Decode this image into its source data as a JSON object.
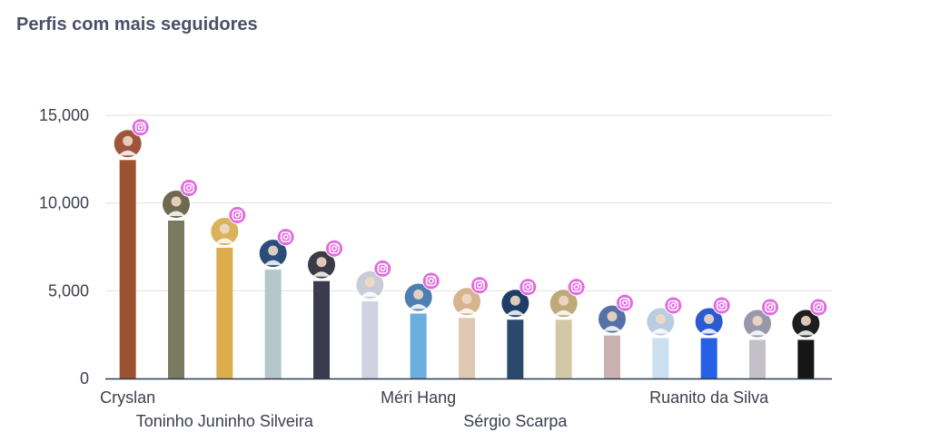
{
  "chart_data": {
    "type": "bar",
    "title": "Perfis com mais seguidores",
    "xlabel": "",
    "ylabel": "",
    "ylim": [
      0,
      15000
    ],
    "yticks": [
      0,
      5000,
      10000,
      15000
    ],
    "ytick_labels": [
      "0",
      "5,000",
      "10,000",
      "15,000"
    ],
    "grid": true,
    "categories": [
      "Cryslan",
      "",
      "Toninho Juninho Silveira",
      "",
      "",
      "",
      "Méri Hang",
      "",
      "Sérgio Scarpa",
      "",
      "",
      "",
      "Ruanito da Silva",
      "",
      ""
    ],
    "values": [
      12450,
      9000,
      7450,
      6200,
      5550,
      4400,
      3700,
      3450,
      3350,
      3350,
      2450,
      2300,
      2300,
      2200,
      2200
    ],
    "colors": [
      "#9c5230",
      "#7a7a60",
      "#dcad4d",
      "#b4c8cc",
      "#3c3a4e",
      "#cfd3e0",
      "#6aaedd",
      "#dfc8b3",
      "#2b4a6b",
      "#d3c8a6",
      "#cbb2b2",
      "#cce0ef",
      "#2660e6",
      "#c3c0c8",
      "#161616"
    ],
    "avatar_colors": [
      "#a0553a",
      "#6f6a4f",
      "#d8b35a",
      "#2c4d7a",
      "#3a3a48",
      "#c9ccd6",
      "#4d7fb0",
      "#d6b48e",
      "#1f3d66",
      "#bfa87a",
      "#5670a8",
      "#b8cde0",
      "#2a5bd0",
      "#9a98a8",
      "#1e1e1e"
    ],
    "icon": "instagram-icon",
    "icon_color": "#e36adf"
  }
}
